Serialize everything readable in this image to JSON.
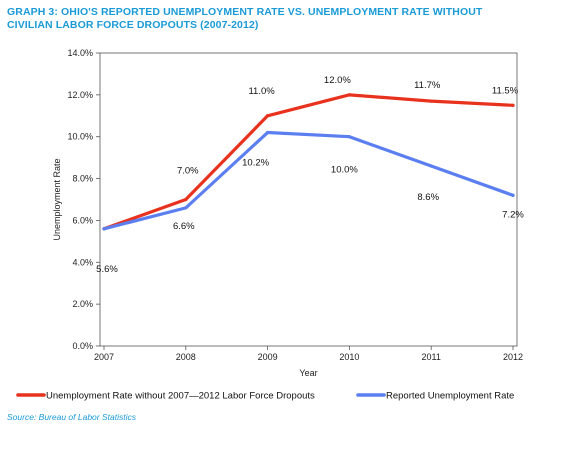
{
  "page": {
    "title_line1": "GRAPH 3: OHIO'S REPORTED UNEMPLOYMENT RATE VS. UNEMPLOYMENT RATE WITHOUT",
    "title_line2": "CIVILIAN LABOR FORCE DROPOUTS (2007-2012)",
    "source_prefix": "Source: ",
    "source_text": "Bureau of Labor Statistics"
  },
  "chart_data": {
    "type": "line",
    "title": "GRAPH 3: OHIO'S REPORTED UNEMPLOYMENT RATE VS. UNEMPLOYMENT RATE WITHOUT CIVILIAN LABOR FORCE DROPOUTS (2007-2012)",
    "xlabel": "Year",
    "ylabel": "Unemployment Rate",
    "categories": [
      "2007",
      "2008",
      "2009",
      "2010",
      "2011",
      "2012"
    ],
    "ylim": [
      0,
      14
    ],
    "yticks": [
      "0.0%",
      "2.0%",
      "4.0%",
      "6.0%",
      "8.0%",
      "10.0%",
      "12.0%",
      "14.0%"
    ],
    "grid": false,
    "legend_position": "bottom",
    "series": [
      {
        "name": "Unemployment Rate without 2007—2012 Labor Force Dropouts",
        "color": "#e8321e",
        "values": [
          5.6,
          7.0,
          11.0,
          12.0,
          11.7,
          11.5
        ],
        "labels": [
          "",
          "7.0%",
          "11.0%",
          "12.0%",
          "11.7%",
          "11.5%"
        ]
      },
      {
        "name": "Reported Unemployment Rate",
        "color": "#5b7ff0",
        "values": [
          5.6,
          6.6,
          10.2,
          10.0,
          8.6,
          7.2
        ],
        "labels": [
          "5.6%",
          "6.6%",
          "10.2%",
          "10.0%",
          "8.6%",
          "7.2%"
        ]
      }
    ]
  }
}
